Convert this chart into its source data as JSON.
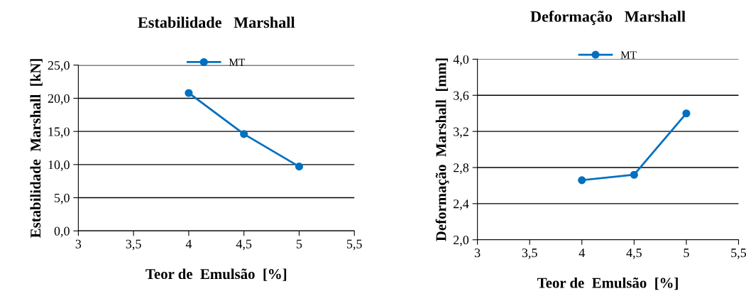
{
  "chart_data": [
    {
      "type": "line",
      "title": "Estabilidade   Marshall",
      "xlabel": "Teor de  Emulsão  [%]",
      "ylabel": "Estabilidade  Marshall  [kN]",
      "x": [
        4,
        4.5,
        5
      ],
      "series": [
        {
          "name": "MT",
          "color": "#0070c0",
          "values": [
            20.8,
            14.6,
            9.7
          ]
        }
      ],
      "xlim": [
        3,
        5.5
      ],
      "xticks": [
        3,
        {
          "value": 3.5,
          "label": "3,5"
        },
        4,
        {
          "value": 4.5,
          "label": "4,5"
        },
        5,
        {
          "value": 5.5,
          "label": "5,5"
        }
      ],
      "ylim": [
        0,
        25
      ],
      "yticks": [
        {
          "value": 0,
          "label": "0,0"
        },
        {
          "value": 5,
          "label": "5,0"
        },
        {
          "value": 10,
          "label": "10,0"
        },
        {
          "value": 15,
          "label": "15,0"
        },
        {
          "value": 20,
          "label": "20,0"
        },
        {
          "value": 25,
          "label": "25,0"
        }
      ],
      "grid": "y",
      "legend": "top",
      "marker": "circle",
      "line_style": "solid"
    },
    {
      "type": "line",
      "title": "Deformação   Marshall",
      "xlabel": "Teor de  Emulsão  [%]",
      "ylabel": "Deformação  Marshall  [mm]",
      "x": [
        4,
        4.5,
        5
      ],
      "series": [
        {
          "name": "MT",
          "color": "#0070c0",
          "values": [
            2.66,
            2.72,
            3.4
          ]
        }
      ],
      "xlim": [
        3,
        5.5
      ],
      "xticks": [
        3,
        {
          "value": 3.5,
          "label": "3,5"
        },
        4,
        {
          "value": 4.5,
          "label": "4,5"
        },
        5,
        {
          "value": 5.5,
          "label": "5,5"
        }
      ],
      "ylim": [
        2,
        4
      ],
      "yticks": [
        {
          "value": 2,
          "label": "2,0"
        },
        {
          "value": 2.4,
          "label": "2,4"
        },
        {
          "value": 2.8,
          "label": "2,8"
        },
        {
          "value": 3.2,
          "label": "3,2"
        },
        {
          "value": 3.6,
          "label": "3,6"
        },
        {
          "value": 4,
          "label": "4,0"
        }
      ],
      "grid": "y",
      "legend": "top",
      "marker": "circle",
      "line_style": "solid"
    }
  ]
}
